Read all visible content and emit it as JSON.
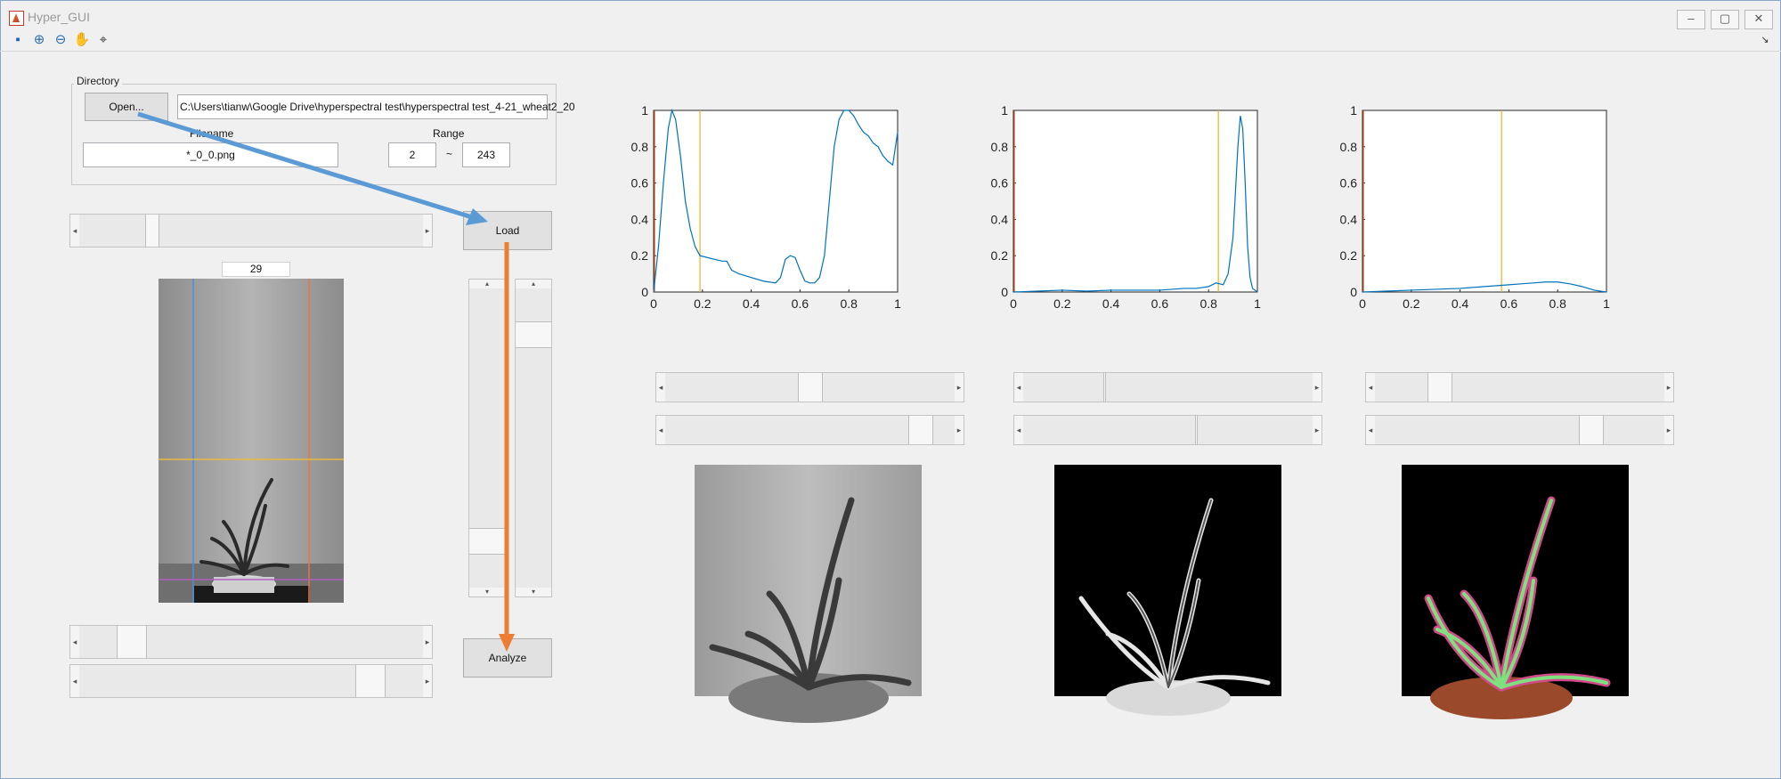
{
  "window": {
    "title": "Hyper_GUI",
    "min": "–",
    "max": "▢",
    "close": "✕"
  },
  "toolbar": [
    "save-icon",
    "zoom-in-icon",
    "zoom-out-icon",
    "pan-icon",
    "data-cursor-icon"
  ],
  "directory": {
    "group_label": "Directory",
    "open_label": "Open...",
    "path": "C:\\Users\\tianw\\Google Drive\\hyperspectral test\\hyperspectral test_4-21_wheat2_20",
    "filename_label": "Filename",
    "filename": "*_0_0.png",
    "range_label": "Range",
    "range_start": "2",
    "range_sep": "~",
    "range_end": "243"
  },
  "buttons": {
    "load": "Load",
    "analyze": "Analyze"
  },
  "frame_index": "29",
  "sliders": {
    "left_top": 0.2,
    "left_bottom1": 0.12,
    "left_bottom2": 0.88,
    "vertical_left": 0.88,
    "vertical_right": 0.12,
    "plot1_a": 0.5,
    "plot1_b": 0.92,
    "plot2_a": 0.28,
    "plot2_b": 0.6,
    "plot3_a": 0.2,
    "plot3_b": 0.77
  },
  "plots": {
    "x_ticks": [
      "0",
      "0.2",
      "0.4",
      "0.6",
      "0.8",
      "1"
    ],
    "y_ticks": [
      "0",
      "0.2",
      "0.4",
      "0.6",
      "0.8",
      "1"
    ],
    "line_color": "#0072bd",
    "marker_color": "#edb120",
    "left_marker_color": "#d95319"
  },
  "chart_data": [
    {
      "type": "line",
      "xlim": [
        0,
        1
      ],
      "ylim": [
        0,
        1
      ],
      "marker_x": 0.19,
      "x": [
        0,
        0.02,
        0.04,
        0.06,
        0.075,
        0.09,
        0.11,
        0.13,
        0.15,
        0.17,
        0.19,
        0.22,
        0.25,
        0.28,
        0.3,
        0.32,
        0.35,
        0.4,
        0.45,
        0.5,
        0.52,
        0.54,
        0.56,
        0.58,
        0.6,
        0.62,
        0.64,
        0.66,
        0.68,
        0.7,
        0.72,
        0.74,
        0.76,
        0.78,
        0.8,
        0.82,
        0.84,
        0.86,
        0.88,
        0.9,
        0.92,
        0.94,
        0.96,
        0.98,
        1.0
      ],
      "y": [
        0,
        0.25,
        0.6,
        0.9,
        1.0,
        0.95,
        0.75,
        0.5,
        0.35,
        0.25,
        0.2,
        0.19,
        0.18,
        0.17,
        0.17,
        0.12,
        0.1,
        0.08,
        0.06,
        0.05,
        0.08,
        0.18,
        0.2,
        0.19,
        0.12,
        0.06,
        0.05,
        0.05,
        0.08,
        0.2,
        0.5,
        0.8,
        0.95,
        1.0,
        1.0,
        0.97,
        0.92,
        0.88,
        0.86,
        0.82,
        0.8,
        0.75,
        0.72,
        0.7,
        0.88
      ]
    },
    {
      "type": "line",
      "xlim": [
        0,
        1
      ],
      "ylim": [
        0,
        1
      ],
      "marker_x": 0.84,
      "x": [
        0,
        0.1,
        0.2,
        0.3,
        0.4,
        0.5,
        0.6,
        0.7,
        0.75,
        0.8,
        0.83,
        0.86,
        0.88,
        0.9,
        0.91,
        0.92,
        0.93,
        0.94,
        0.95,
        0.96,
        0.97,
        0.98,
        1.0
      ],
      "y": [
        0,
        0.005,
        0.01,
        0.005,
        0.01,
        0.01,
        0.01,
        0.02,
        0.02,
        0.03,
        0.05,
        0.04,
        0.1,
        0.3,
        0.55,
        0.8,
        0.97,
        0.9,
        0.6,
        0.25,
        0.08,
        0.02,
        0
      ]
    },
    {
      "type": "line",
      "xlim": [
        0,
        1
      ],
      "ylim": [
        0,
        1
      ],
      "marker_x": 0.57,
      "x": [
        0,
        0.1,
        0.2,
        0.3,
        0.4,
        0.5,
        0.6,
        0.65,
        0.7,
        0.75,
        0.8,
        0.85,
        0.9,
        0.95,
        1.0
      ],
      "y": [
        0,
        0.005,
        0.01,
        0.015,
        0.02,
        0.03,
        0.04,
        0.045,
        0.05,
        0.055,
        0.055,
        0.045,
        0.03,
        0.01,
        0
      ]
    }
  ]
}
